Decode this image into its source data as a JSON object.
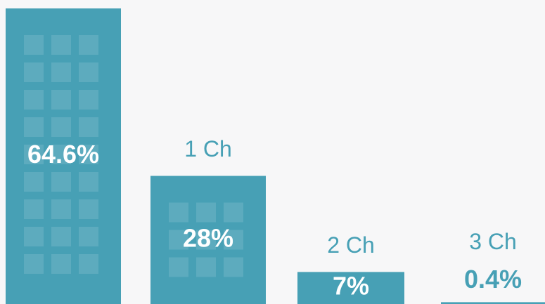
{
  "chart_data": {
    "type": "bar",
    "categories": [
      null,
      "1 Ch",
      "2 Ch",
      "3 Ch"
    ],
    "values": [
      64.6,
      28,
      7,
      0.4
    ],
    "value_labels": [
      "64.6%",
      "28%",
      "7%",
      "0.4%"
    ],
    "color": "#47a0b5"
  }
}
